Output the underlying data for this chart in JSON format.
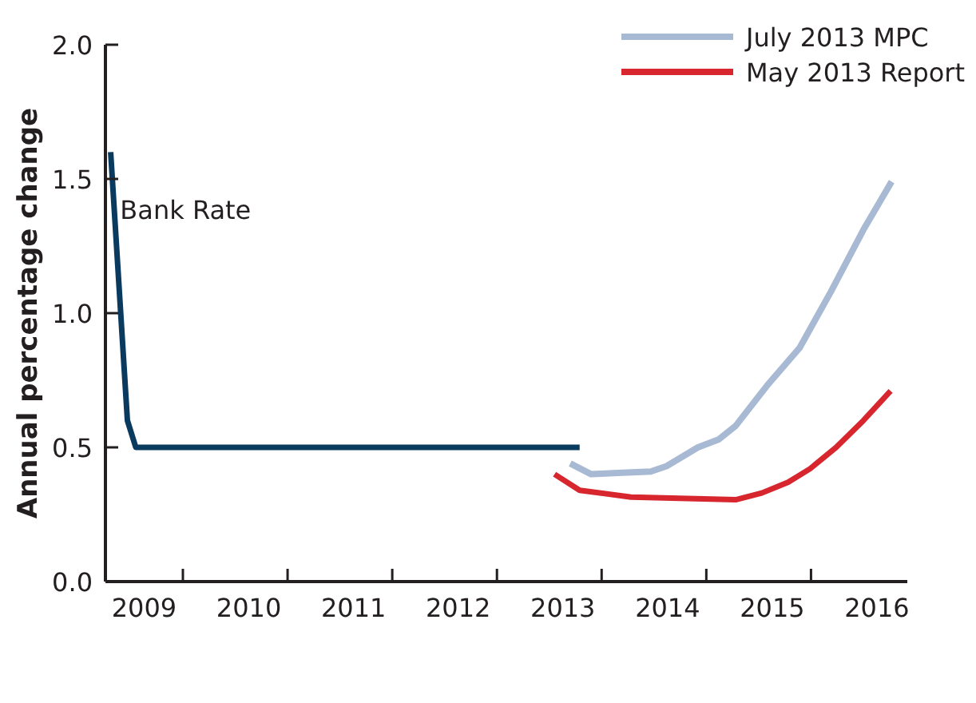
{
  "chart_data": {
    "type": "line",
    "ylabel": "Annual percentage change",
    "xlim": [
      2008.63,
      2016.29
    ],
    "xticks": [
      2009,
      {
        "value": 2009.37,
        "label": null
      },
      2010,
      {
        "value": 2010.37,
        "label": null
      },
      2011,
      {
        "value": 2011.37,
        "label": null
      },
      2012,
      {
        "value": 2012.37,
        "label": null
      },
      2013,
      {
        "value": 2013.37,
        "label": null
      },
      2014,
      {
        "value": 2014.37,
        "label": null
      },
      2015,
      {
        "value": 2015.37,
        "label": null
      },
      2016
    ],
    "ylim": [
      0,
      2
    ],
    "yticks": [
      {
        "value": 0,
        "label": "0.0"
      },
      {
        "value": 0.5,
        "label": "0.5"
      },
      {
        "value": 1,
        "label": "1.0"
      },
      {
        "value": 1.5,
        "label": "1.5"
      },
      {
        "value": 2,
        "label": "2.0"
      }
    ],
    "grid": false,
    "legend": "top right",
    "marker": "none",
    "line_style": "solid",
    "annotations": [
      {
        "text": "Bank Rate",
        "x": 2008.77,
        "y": 1.35
      }
    ],
    "series": [
      {
        "color": "#0b3a5f",
        "x": [
          2008.68,
          2008.84,
          2008.92,
          2013.16
        ],
        "values": [
          1.6,
          0.6,
          0.5,
          0.5
        ]
      },
      {
        "name": "July 2013 MPC",
        "color": "#a7b9d3",
        "x": [
          2013.07,
          2013.27,
          2013.84,
          2013.99,
          2014.29,
          2014.49,
          2014.65,
          2014.95,
          2015.26,
          2015.56,
          2015.87,
          2016.14
        ],
        "values": [
          0.44,
          0.4,
          0.41,
          0.43,
          0.5,
          0.53,
          0.58,
          0.73,
          0.87,
          1.08,
          1.31,
          1.49
        ]
      },
      {
        "name": "May 2013 Report",
        "color": "#d7262d",
        "x": [
          2012.92,
          2013.16,
          2013.65,
          2014.65,
          2014.9,
          2015.15,
          2015.36,
          2015.61,
          2015.87,
          2016.13
        ],
        "values": [
          0.4,
          0.34,
          0.315,
          0.305,
          0.33,
          0.37,
          0.42,
          0.5,
          0.6,
          0.71
        ]
      }
    ]
  }
}
